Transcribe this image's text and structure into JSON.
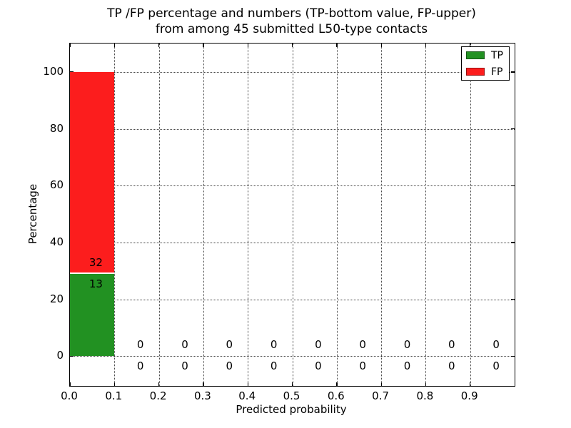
{
  "chart_data": {
    "type": "bar",
    "stacked": true,
    "title_lines": [
      "TP /FP percentage and numbers (TP-bottom value, FP-upper)",
      "from among 45 submitted L50-type contacts"
    ],
    "xlabel": "Predicted probability",
    "ylabel": "Percentage",
    "total_submitted": 45,
    "xlim": [
      0.0,
      1.0
    ],
    "ylim": [
      -10.5,
      110.0
    ],
    "xticks": [
      0.0,
      0.1,
      0.2,
      0.3,
      0.4,
      0.5,
      0.6,
      0.7,
      0.8,
      0.9
    ],
    "yticks": [
      0,
      20,
      40,
      60,
      80,
      100
    ],
    "grid": "dotted",
    "bin_width": 0.1,
    "bins_x0": [
      0.0,
      0.1,
      0.2,
      0.3,
      0.4,
      0.5,
      0.6,
      0.7,
      0.8,
      0.9
    ],
    "series": [
      {
        "name": "TP",
        "color": "#229122",
        "counts": [
          13,
          0,
          0,
          0,
          0,
          0,
          0,
          0,
          0,
          0
        ],
        "percentages": [
          28.89,
          0,
          0,
          0,
          0,
          0,
          0,
          0,
          0,
          0
        ]
      },
      {
        "name": "FP",
        "color": "#fc1d1d",
        "counts": [
          32,
          0,
          0,
          0,
          0,
          0,
          0,
          0,
          0,
          0
        ],
        "percentages": [
          71.11,
          0,
          0,
          0,
          0,
          0,
          0,
          0,
          0,
          0
        ]
      }
    ],
    "legend": {
      "position": "upper right",
      "entries": [
        {
          "label": "TP",
          "color": "#229122"
        },
        {
          "label": "FP",
          "color": "#fc1d1d"
        }
      ]
    }
  }
}
